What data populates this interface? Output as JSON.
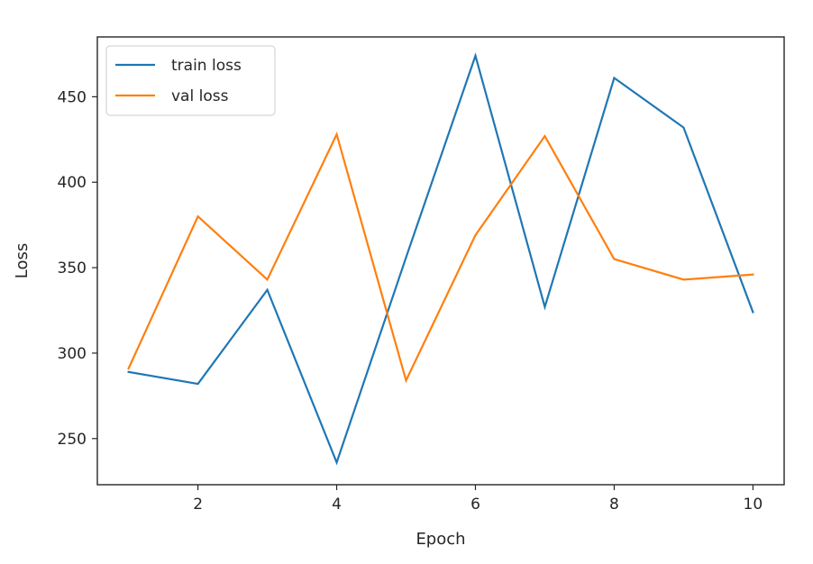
{
  "chart_data": {
    "type": "line",
    "xlabel": "Epoch",
    "ylabel": "Loss",
    "x": [
      1,
      2,
      3,
      4,
      5,
      6,
      7,
      8,
      9,
      10
    ],
    "xlim": [
      0.55,
      10.45
    ],
    "ylim": [
      223,
      485
    ],
    "xticks": [
      2,
      4,
      6,
      8,
      10
    ],
    "yticks": [
      250,
      300,
      350,
      400,
      450
    ],
    "grid": false,
    "legend_position": "top-left",
    "series": [
      {
        "name": "train loss",
        "color": "#1f77b4",
        "values": [
          289,
          282,
          337,
          236,
          356,
          474,
          327,
          461,
          432,
          324
        ]
      },
      {
        "name": "val loss",
        "color": "#ff7f0e",
        "values": [
          291,
          380,
          343,
          428,
          284,
          369,
          427,
          355,
          343,
          346
        ]
      }
    ]
  }
}
